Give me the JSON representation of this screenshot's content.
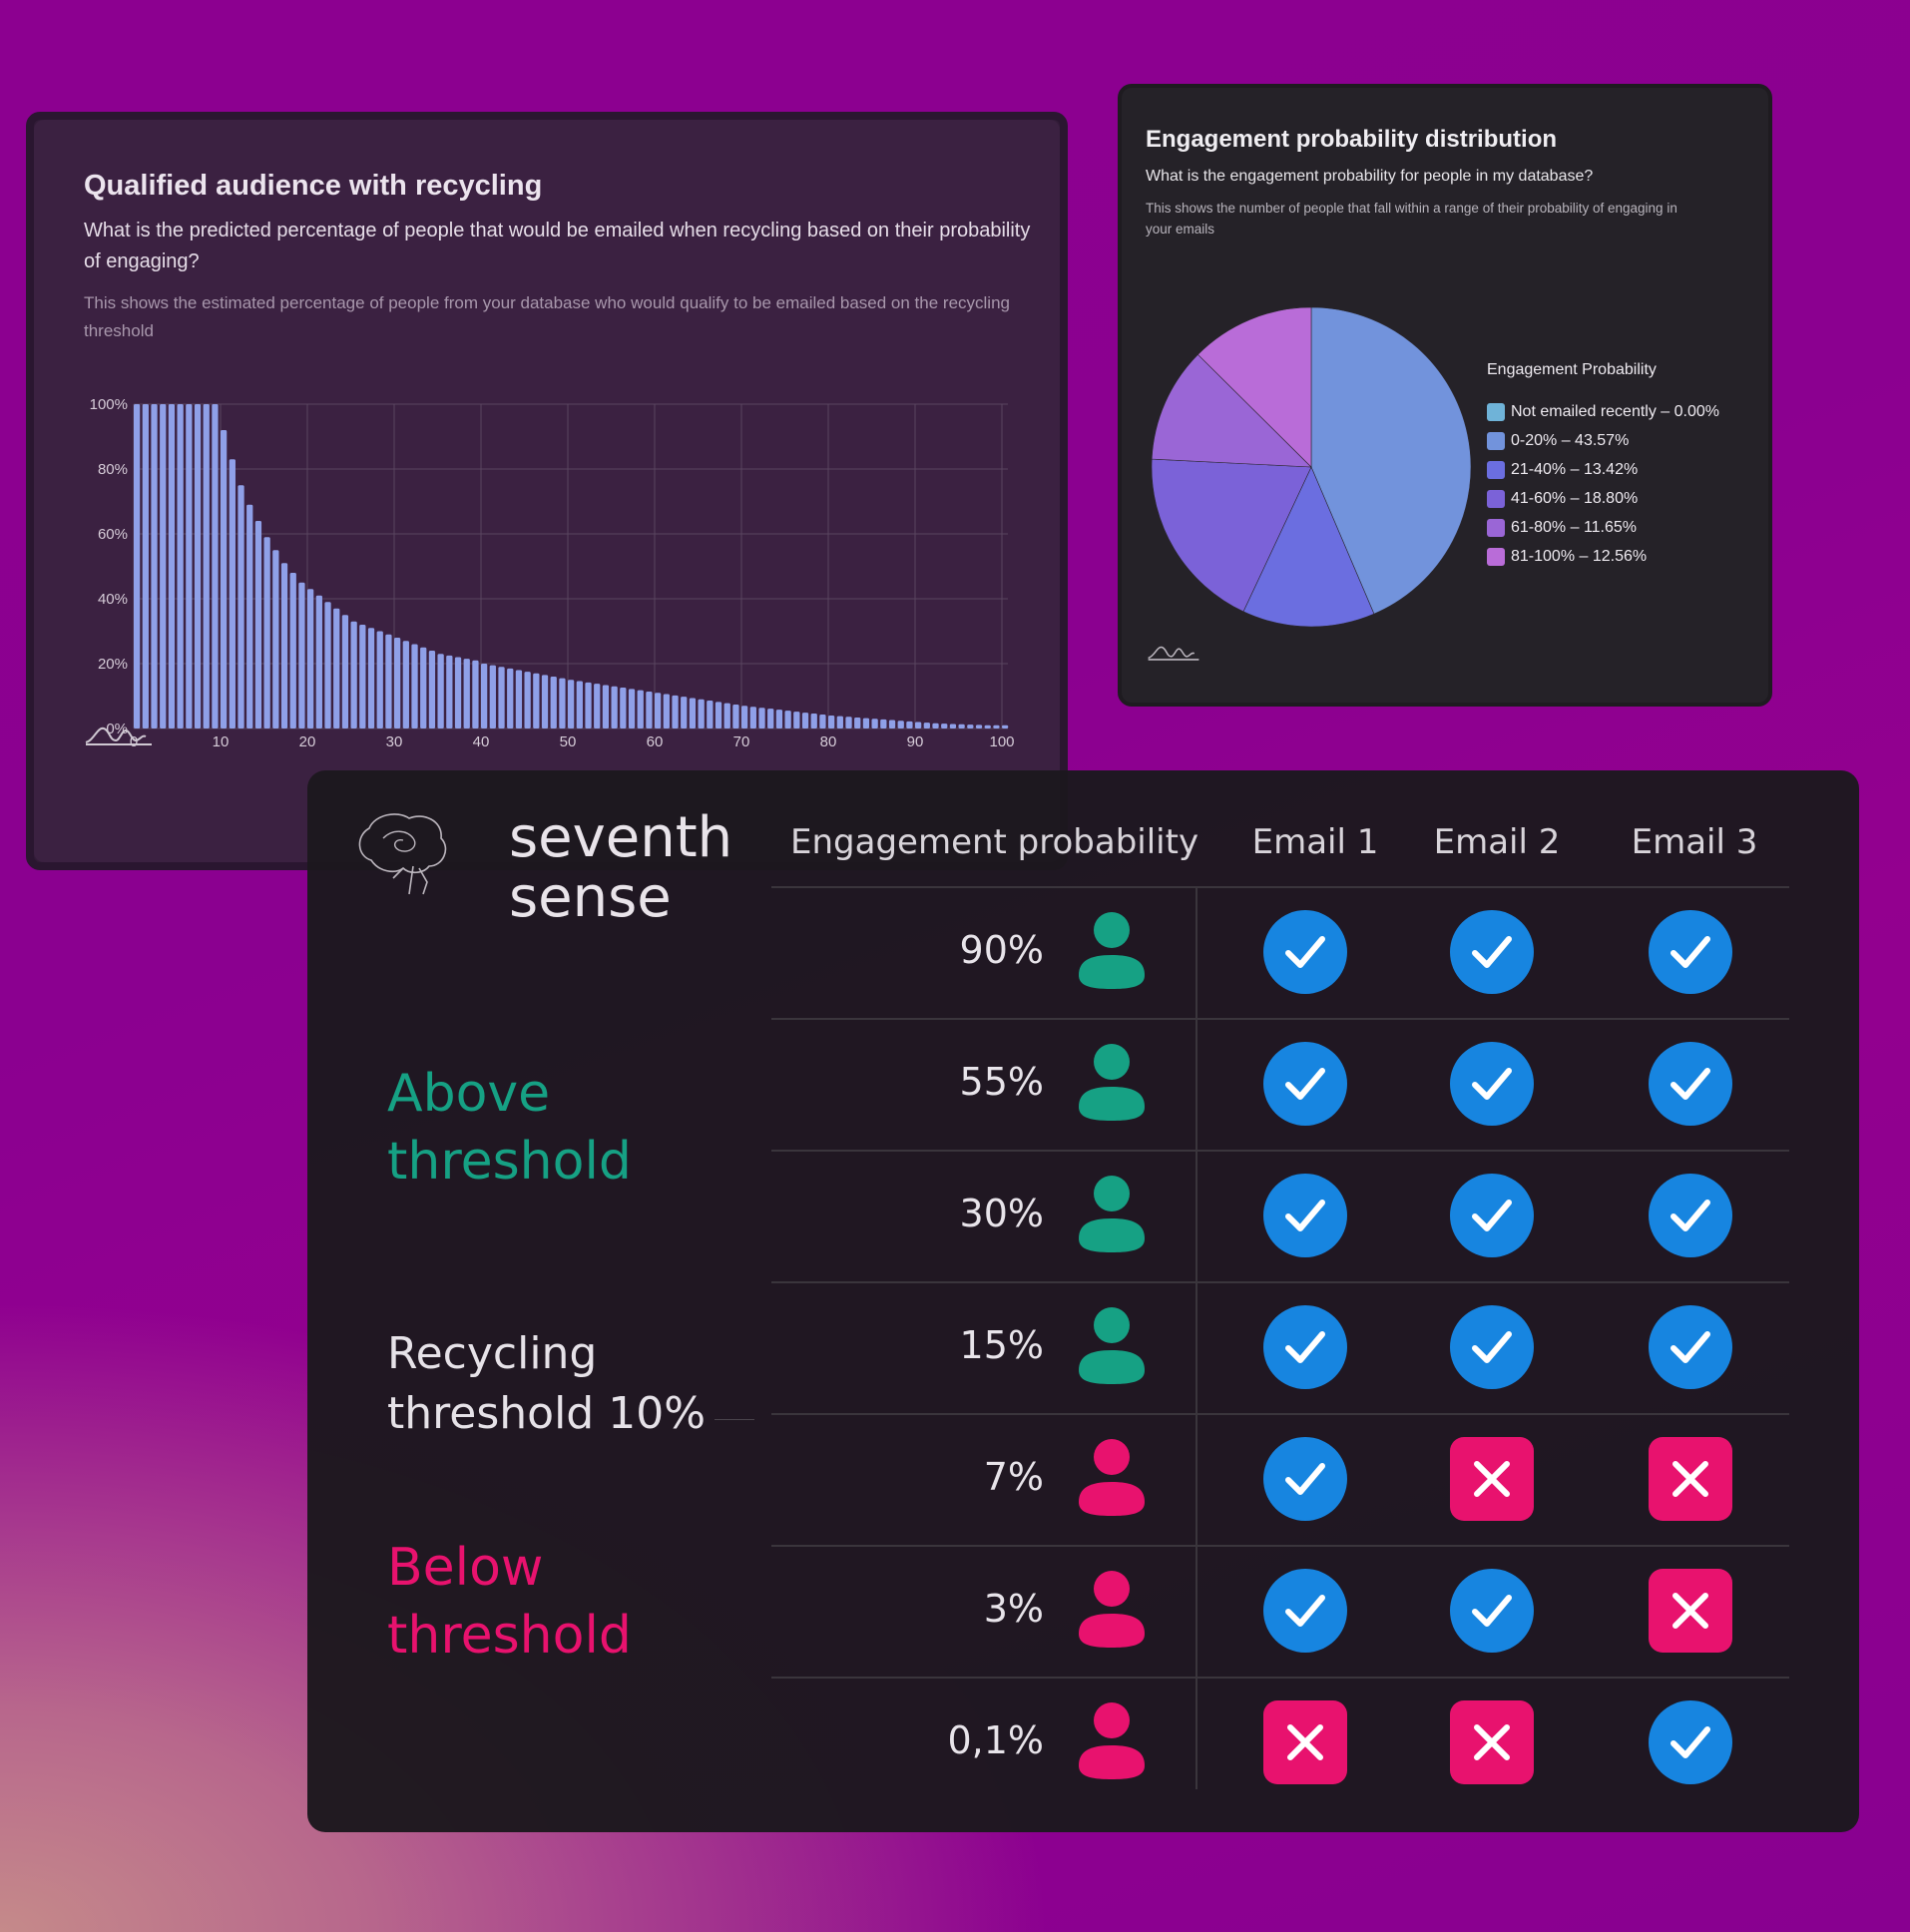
{
  "bar_card": {
    "title": "Qualified audience with recycling",
    "question": "What is the predicted percentage of people that would be emailed when recycling based on their probability of engaging?",
    "description": "This shows the estimated percentage of people from your database who would qualify to be emailed based on the recycling threshold"
  },
  "pie_card": {
    "title": "Engagement probability distribution",
    "question": "What is the engagement probability for people in my database?",
    "description": "This shows the number of people that fall within a range of their probability of engaging in your emails",
    "legend_title": "Engagement Probability"
  },
  "chart_data": [
    {
      "type": "bar",
      "title": "Qualified audience with recycling",
      "x": [
        0,
        1,
        2,
        3,
        4,
        5,
        6,
        7,
        8,
        9,
        10,
        11,
        12,
        13,
        14,
        15,
        16,
        17,
        18,
        19,
        20,
        21,
        22,
        23,
        24,
        25,
        26,
        27,
        28,
        29,
        30,
        31,
        32,
        33,
        34,
        35,
        36,
        37,
        38,
        39,
        40,
        41,
        42,
        43,
        44,
        45,
        46,
        47,
        48,
        49,
        50,
        51,
        52,
        53,
        54,
        55,
        56,
        57,
        58,
        59,
        60,
        61,
        62,
        63,
        64,
        65,
        66,
        67,
        68,
        69,
        70,
        71,
        72,
        73,
        74,
        75,
        76,
        77,
        78,
        79,
        80,
        81,
        82,
        83,
        84,
        85,
        86,
        87,
        88,
        89,
        90,
        91,
        92,
        93,
        94,
        95,
        96,
        97,
        98,
        99,
        100
      ],
      "values": [
        100,
        100,
        100,
        100,
        100,
        100,
        100,
        100,
        100,
        100,
        92,
        83,
        75,
        69,
        64,
        59,
        55,
        51,
        48,
        45,
        43,
        41,
        39,
        37,
        35,
        33,
        32,
        31,
        30,
        29,
        28,
        27,
        26,
        25,
        24,
        23,
        22.5,
        22,
        21.5,
        21,
        20,
        19.5,
        19,
        18.5,
        18,
        17.5,
        17,
        16.5,
        16,
        15.5,
        15,
        14.6,
        14.2,
        13.8,
        13.4,
        13,
        12.6,
        12.2,
        11.8,
        11.4,
        11,
        10.6,
        10.2,
        9.8,
        9.4,
        9,
        8.6,
        8.2,
        7.8,
        7.4,
        7,
        6.7,
        6.4,
        6.1,
        5.8,
        5.5,
        5.2,
        4.9,
        4.6,
        4.3,
        4,
        3.8,
        3.6,
        3.4,
        3.2,
        3,
        2.8,
        2.6,
        2.4,
        2.2,
        2,
        1.8,
        1.6,
        1.5,
        1.4,
        1.3,
        1.2,
        1.1,
        1,
        1,
        1
      ],
      "x_ticks": [
        "0",
        "10",
        "20",
        "30",
        "40",
        "50",
        "60",
        "70",
        "80",
        "90",
        "100"
      ],
      "y_ticks": [
        "0%",
        "20%",
        "40%",
        "60%",
        "80%",
        "100%"
      ],
      "ylim": [
        0,
        100
      ],
      "xlim": [
        0,
        100
      ],
      "grid": true,
      "color": "#8fa0e8"
    },
    {
      "type": "pie",
      "title": "Engagement probability distribution",
      "legend_title": "Engagement Probability",
      "legend_position": "right",
      "slices": [
        {
          "label": "Not emailed recently – 0.00%",
          "value": 0.0,
          "color": "#6fb3d8"
        },
        {
          "label": "0-20% – 43.57%",
          "value": 43.57,
          "color": "#7293dc"
        },
        {
          "label": "21-40% – 13.42%",
          "value": 13.42,
          "color": "#6b6ee0"
        },
        {
          "label": "41-60% – 18.80%",
          "value": 18.8,
          "color": "#7b62d8"
        },
        {
          "label": "61-80% – 11.65%",
          "value": 11.65,
          "color": "#9a66d6"
        },
        {
          "label": "81-100% – 12.56%",
          "value": 12.56,
          "color": "#b96cd8"
        }
      ]
    }
  ],
  "table_card": {
    "brand_line1": "seventh",
    "brand_line2": "sense",
    "label_above": [
      "Above",
      "threshold"
    ],
    "label_recycle": [
      "Recycling",
      "threshold 10%"
    ],
    "label_below": [
      "Below",
      "threshold"
    ],
    "headers": [
      "Engagement probability",
      "Email 1",
      "Email 2",
      "Email 3"
    ],
    "colors": {
      "above": "#16a184",
      "below": "#e8126e",
      "check": "#1785e0",
      "cross": "#e8126e"
    },
    "rows": [
      {
        "pct": "90%",
        "status": "above",
        "emails": [
          "check",
          "check",
          "check"
        ]
      },
      {
        "pct": "55%",
        "status": "above",
        "emails": [
          "check",
          "check",
          "check"
        ]
      },
      {
        "pct": "30%",
        "status": "above",
        "emails": [
          "check",
          "check",
          "check"
        ]
      },
      {
        "pct": "15%",
        "status": "above",
        "emails": [
          "check",
          "check",
          "check"
        ]
      },
      {
        "pct": "7%",
        "status": "below",
        "emails": [
          "check",
          "cross",
          "cross"
        ]
      },
      {
        "pct": "3%",
        "status": "below",
        "emails": [
          "check",
          "check",
          "cross"
        ]
      },
      {
        "pct": "0,1%",
        "status": "below",
        "emails": [
          "cross",
          "cross",
          "check"
        ]
      }
    ]
  }
}
